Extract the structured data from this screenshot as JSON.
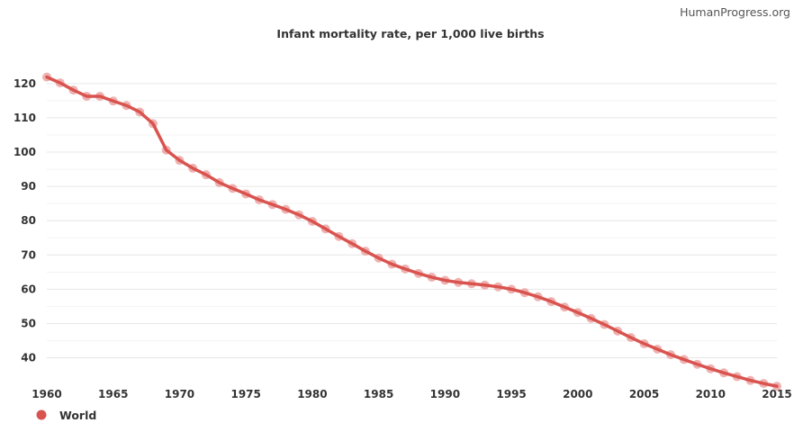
{
  "watermark": "HumanProgress.org",
  "chart_data": {
    "type": "line",
    "title": "Infant mortality rate, per 1,000 live births",
    "xlabel": "",
    "ylabel": "",
    "xlim": [
      1960,
      2015
    ],
    "ylim": [
      32,
      126
    ],
    "x_ticks": [
      1960,
      1965,
      1970,
      1975,
      1980,
      1985,
      1990,
      1995,
      2000,
      2005,
      2010,
      2015
    ],
    "y_ticks": [
      40,
      50,
      60,
      70,
      80,
      90,
      100,
      110,
      120
    ],
    "grid": true,
    "legend": "bottom-left",
    "colors": {
      "series": "#d9534f",
      "marker": "#eba5a3"
    },
    "x": [
      1960,
      1961,
      1962,
      1963,
      1964,
      1965,
      1966,
      1967,
      1968,
      1969,
      1970,
      1971,
      1972,
      1973,
      1974,
      1975,
      1976,
      1977,
      1978,
      1979,
      1980,
      1981,
      1982,
      1983,
      1984,
      1985,
      1986,
      1987,
      1988,
      1989,
      1990,
      1991,
      1992,
      1993,
      1994,
      1995,
      1996,
      1997,
      1998,
      1999,
      2000,
      2001,
      2002,
      2003,
      2004,
      2005,
      2006,
      2007,
      2008,
      2009,
      2010,
      2011,
      2012,
      2013,
      2014,
      2015
    ],
    "series": [
      {
        "name": "World",
        "values": [
          121.9,
          120.2,
          118.1,
          116.3,
          116.3,
          114.9,
          113.6,
          111.7,
          108.3,
          100.6,
          97.6,
          95.3,
          93.4,
          91.1,
          89.4,
          87.8,
          86.1,
          84.7,
          83.3,
          81.7,
          79.8,
          77.6,
          75.4,
          73.3,
          71.1,
          69.1,
          67.3,
          65.9,
          64.6,
          63.5,
          62.6,
          62.0,
          61.6,
          61.2,
          60.7,
          60.0,
          59.0,
          57.8,
          56.4,
          54.8,
          53.2,
          51.5,
          49.7,
          47.8,
          45.9,
          44.1,
          42.5,
          40.9,
          39.5,
          38.1,
          36.8,
          35.6,
          34.5,
          33.4,
          32.5,
          31.7
        ]
      }
    ]
  }
}
